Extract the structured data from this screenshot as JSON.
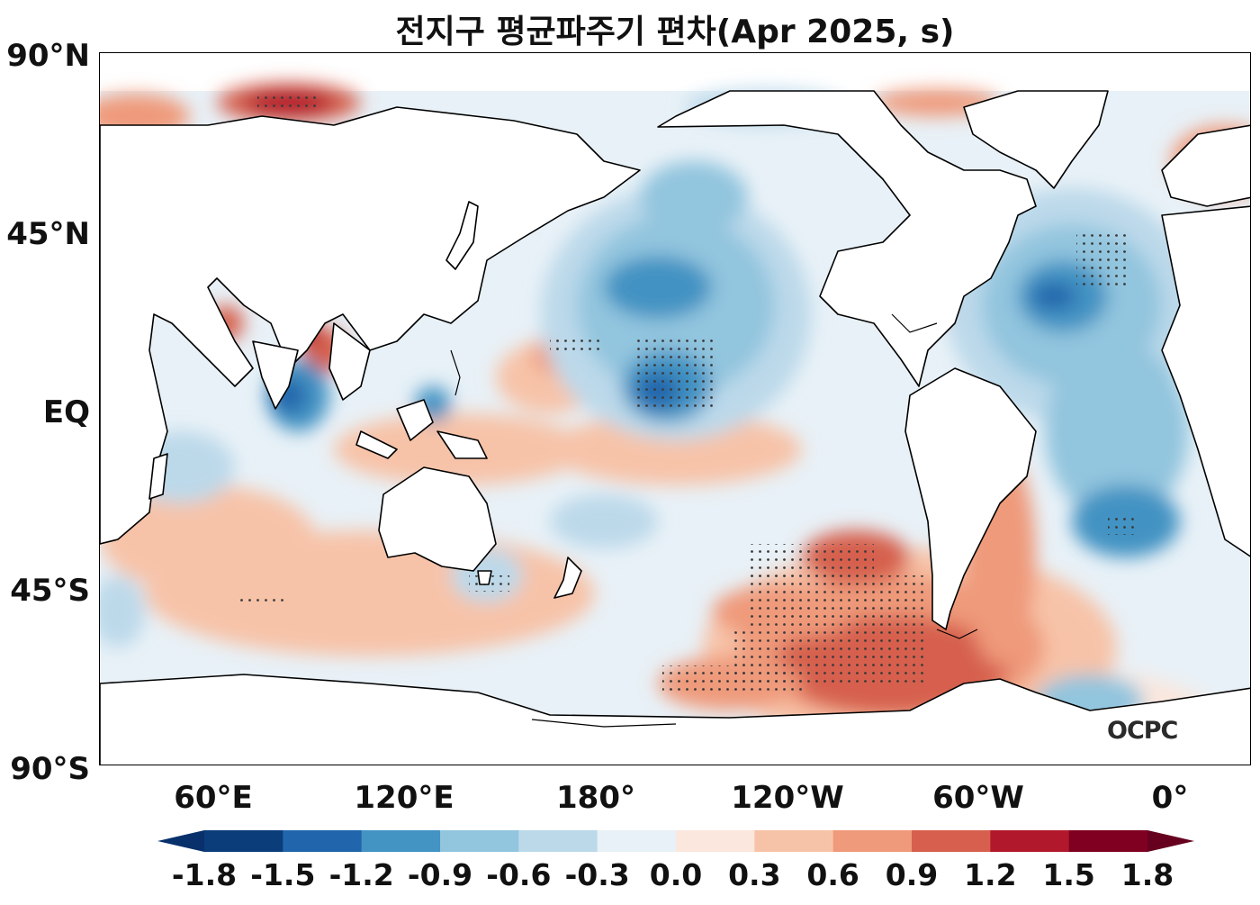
{
  "title": "전지구 평균파주기 편차(Apr 2025, s)",
  "logo_text": "OCPC",
  "lat_labels": [
    "90°N",
    "45°N",
    "EQ",
    "45°S",
    "90°S"
  ],
  "lon_labels": [
    "60°E",
    "120°E",
    "180°",
    "120°W",
    "60°W",
    "0°"
  ],
  "colorbar": {
    "ticks": [
      "-1.8",
      "-1.5",
      "-1.2",
      "-0.9",
      "-0.6",
      "-0.3",
      "0.0",
      "0.3",
      "0.6",
      "0.9",
      "1.2",
      "1.5",
      "1.8"
    ],
    "colors": [
      "#0b3d7a",
      "#2166ac",
      "#4393c3",
      "#92c5de",
      "#bcd9ea",
      "#e8f1f7",
      "#fbe7dd",
      "#f7c3a8",
      "#ef9a7a",
      "#d6604d",
      "#b2182b",
      "#7f0020"
    ],
    "under_color": "#08306b",
    "over_color": "#67001f",
    "extend": "both"
  },
  "map": {
    "projection": "equirectangular",
    "lon_range": [
      25,
      385
    ],
    "lat_range": [
      -90,
      90
    ],
    "land_color": "#ffffff",
    "coastline_color": "#000000",
    "stippling": "significant areas marked with black dots"
  }
}
